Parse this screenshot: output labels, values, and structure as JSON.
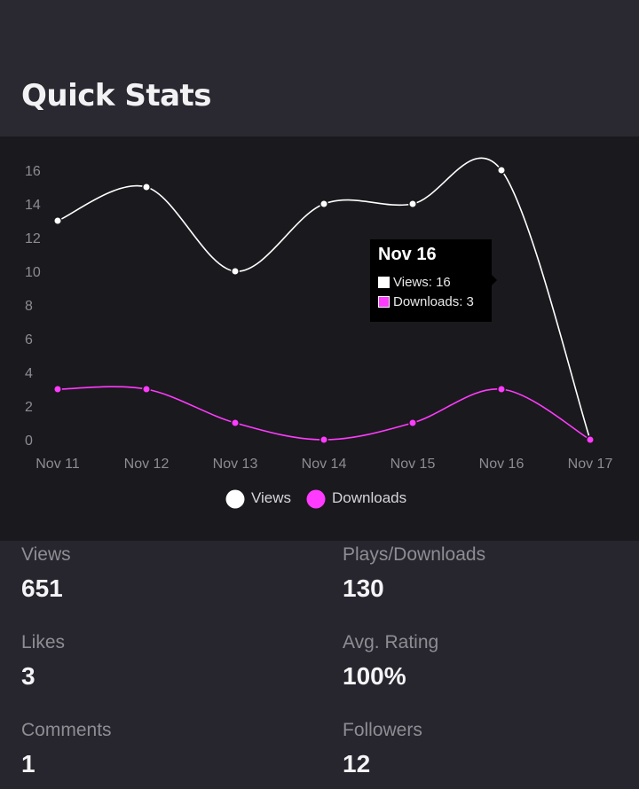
{
  "page": {
    "title": "Quick Stats"
  },
  "colors": {
    "views": "#ffffff",
    "downloads": "#ff3bff"
  },
  "chart_data": {
    "type": "line",
    "x": [
      "Nov 11",
      "Nov 12",
      "Nov 13",
      "Nov 14",
      "Nov 15",
      "Nov 16",
      "Nov 17"
    ],
    "series": [
      {
        "name": "Views",
        "values": [
          13,
          15,
          10,
          14,
          14,
          16,
          0
        ]
      },
      {
        "name": "Downloads",
        "values": [
          3,
          3,
          1,
          0,
          1,
          3,
          0
        ]
      }
    ],
    "y_ticks": [
      0,
      2,
      4,
      6,
      8,
      10,
      12,
      14,
      16
    ],
    "ylim": [
      0,
      16
    ],
    "grid": false,
    "legend_position": "bottom-center"
  },
  "tooltip": {
    "title": "Nov 16",
    "views_text": "Views: 16",
    "downloads_text": "Downloads: 3"
  },
  "stats": {
    "views": {
      "label": "Views",
      "value": "651"
    },
    "plays": {
      "label": "Plays/Downloads",
      "value": "130"
    },
    "likes": {
      "label": "Likes",
      "value": "3"
    },
    "rating": {
      "label": "Avg. Rating",
      "value": "100%"
    },
    "comments": {
      "label": "Comments",
      "value": "1"
    },
    "followers": {
      "label": "Followers",
      "value": "12"
    }
  }
}
